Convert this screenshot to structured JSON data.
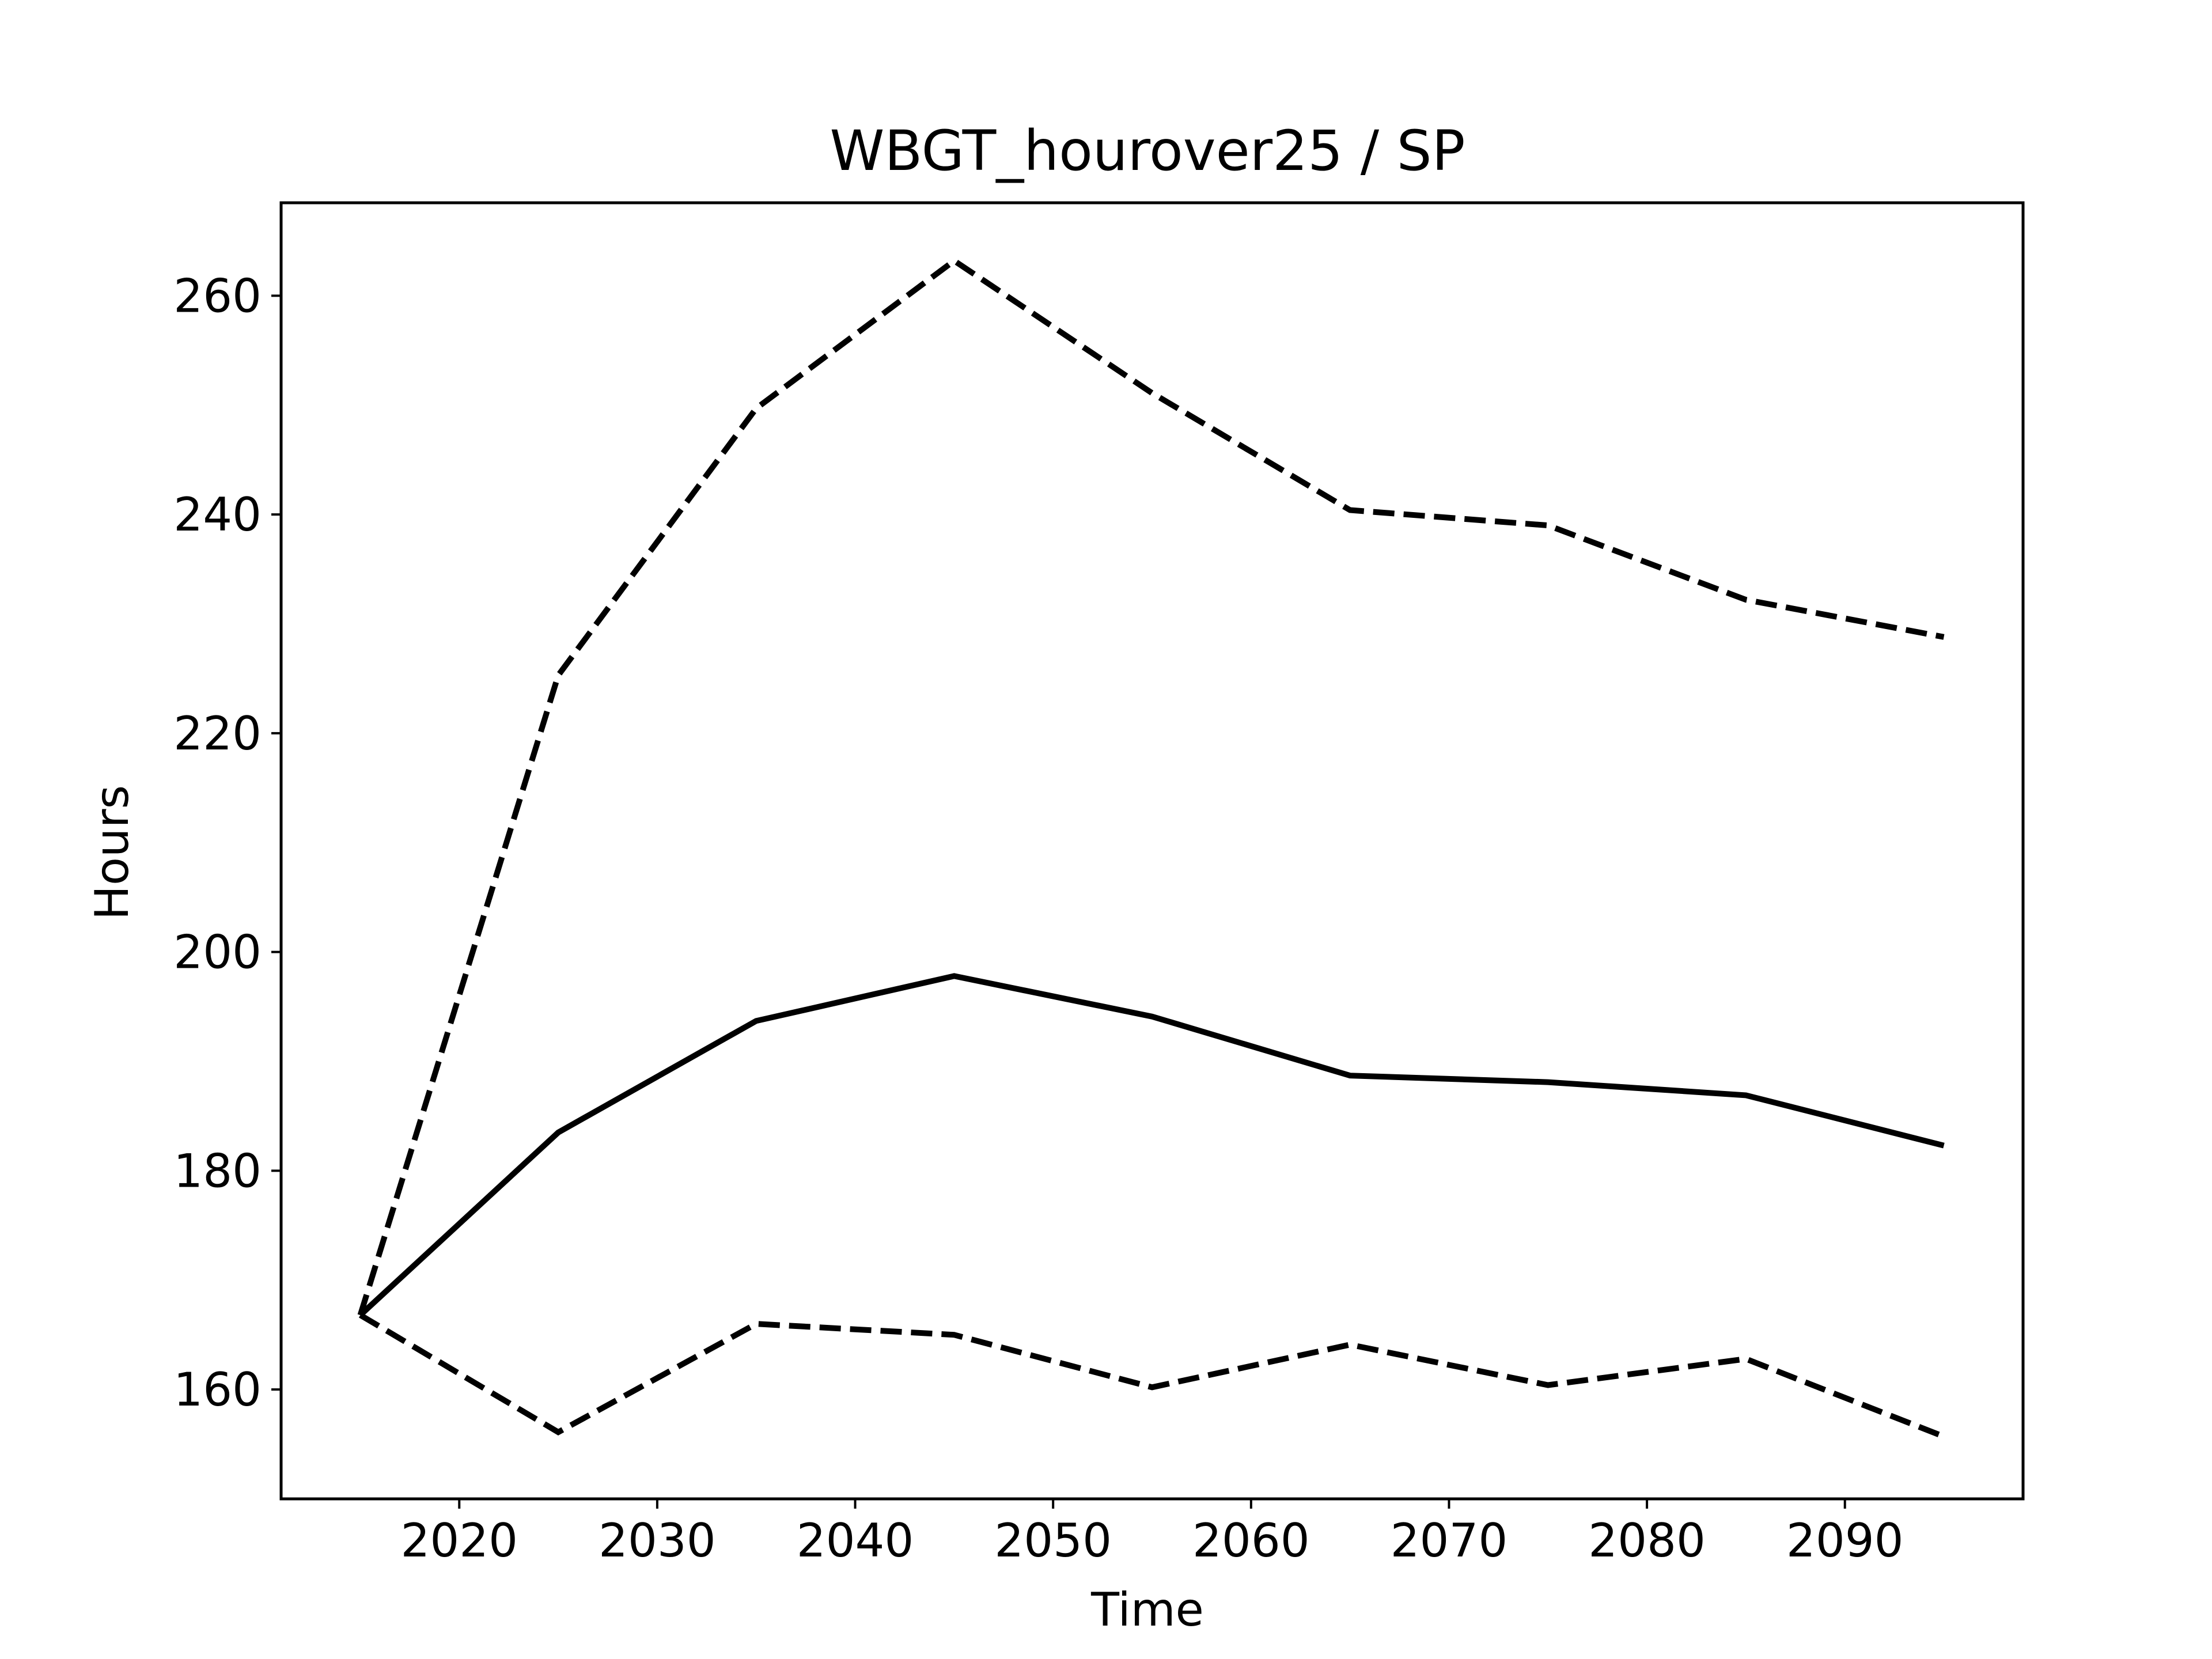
{
  "chart_data": {
    "type": "line",
    "title": "WBGT_hourover25 / SP",
    "xlabel": "Time",
    "ylabel": "Hours",
    "xlim": [
      2011,
      2099
    ],
    "ylim": [
      150,
      268.5
    ],
    "x_ticks": [
      2020,
      2030,
      2040,
      2050,
      2060,
      2070,
      2080,
      2090
    ],
    "y_ticks": [
      160,
      180,
      200,
      220,
      240,
      260
    ],
    "x_tick_labels": [
      "2020",
      "2030",
      "2040",
      "2050",
      "2060",
      "2070",
      "2080",
      "2090"
    ],
    "y_tick_labels": [
      "160",
      "180",
      "200",
      "220",
      "240",
      "260"
    ],
    "grid": false,
    "legend": "none",
    "x": [
      2015,
      2025,
      2035,
      2045,
      2055,
      2065,
      2075,
      2085,
      2095
    ],
    "series": [
      {
        "style": "solid",
        "color": "#000000",
        "values": [
          166.8,
          183.5,
          193.7,
          197.8,
          194.1,
          188.7,
          188.1,
          186.9,
          182.3
        ]
      },
      {
        "style": "dashed",
        "color": "#000000",
        "values": [
          166.8,
          225.3,
          249.7,
          263.2,
          251.1,
          240.4,
          239.0,
          232.2,
          228.8
        ]
      },
      {
        "style": "dashed",
        "color": "#000000",
        "values": [
          166.8,
          156.1,
          166.0,
          165.0,
          160.2,
          164.1,
          160.4,
          162.8,
          155.7
        ]
      }
    ]
  }
}
